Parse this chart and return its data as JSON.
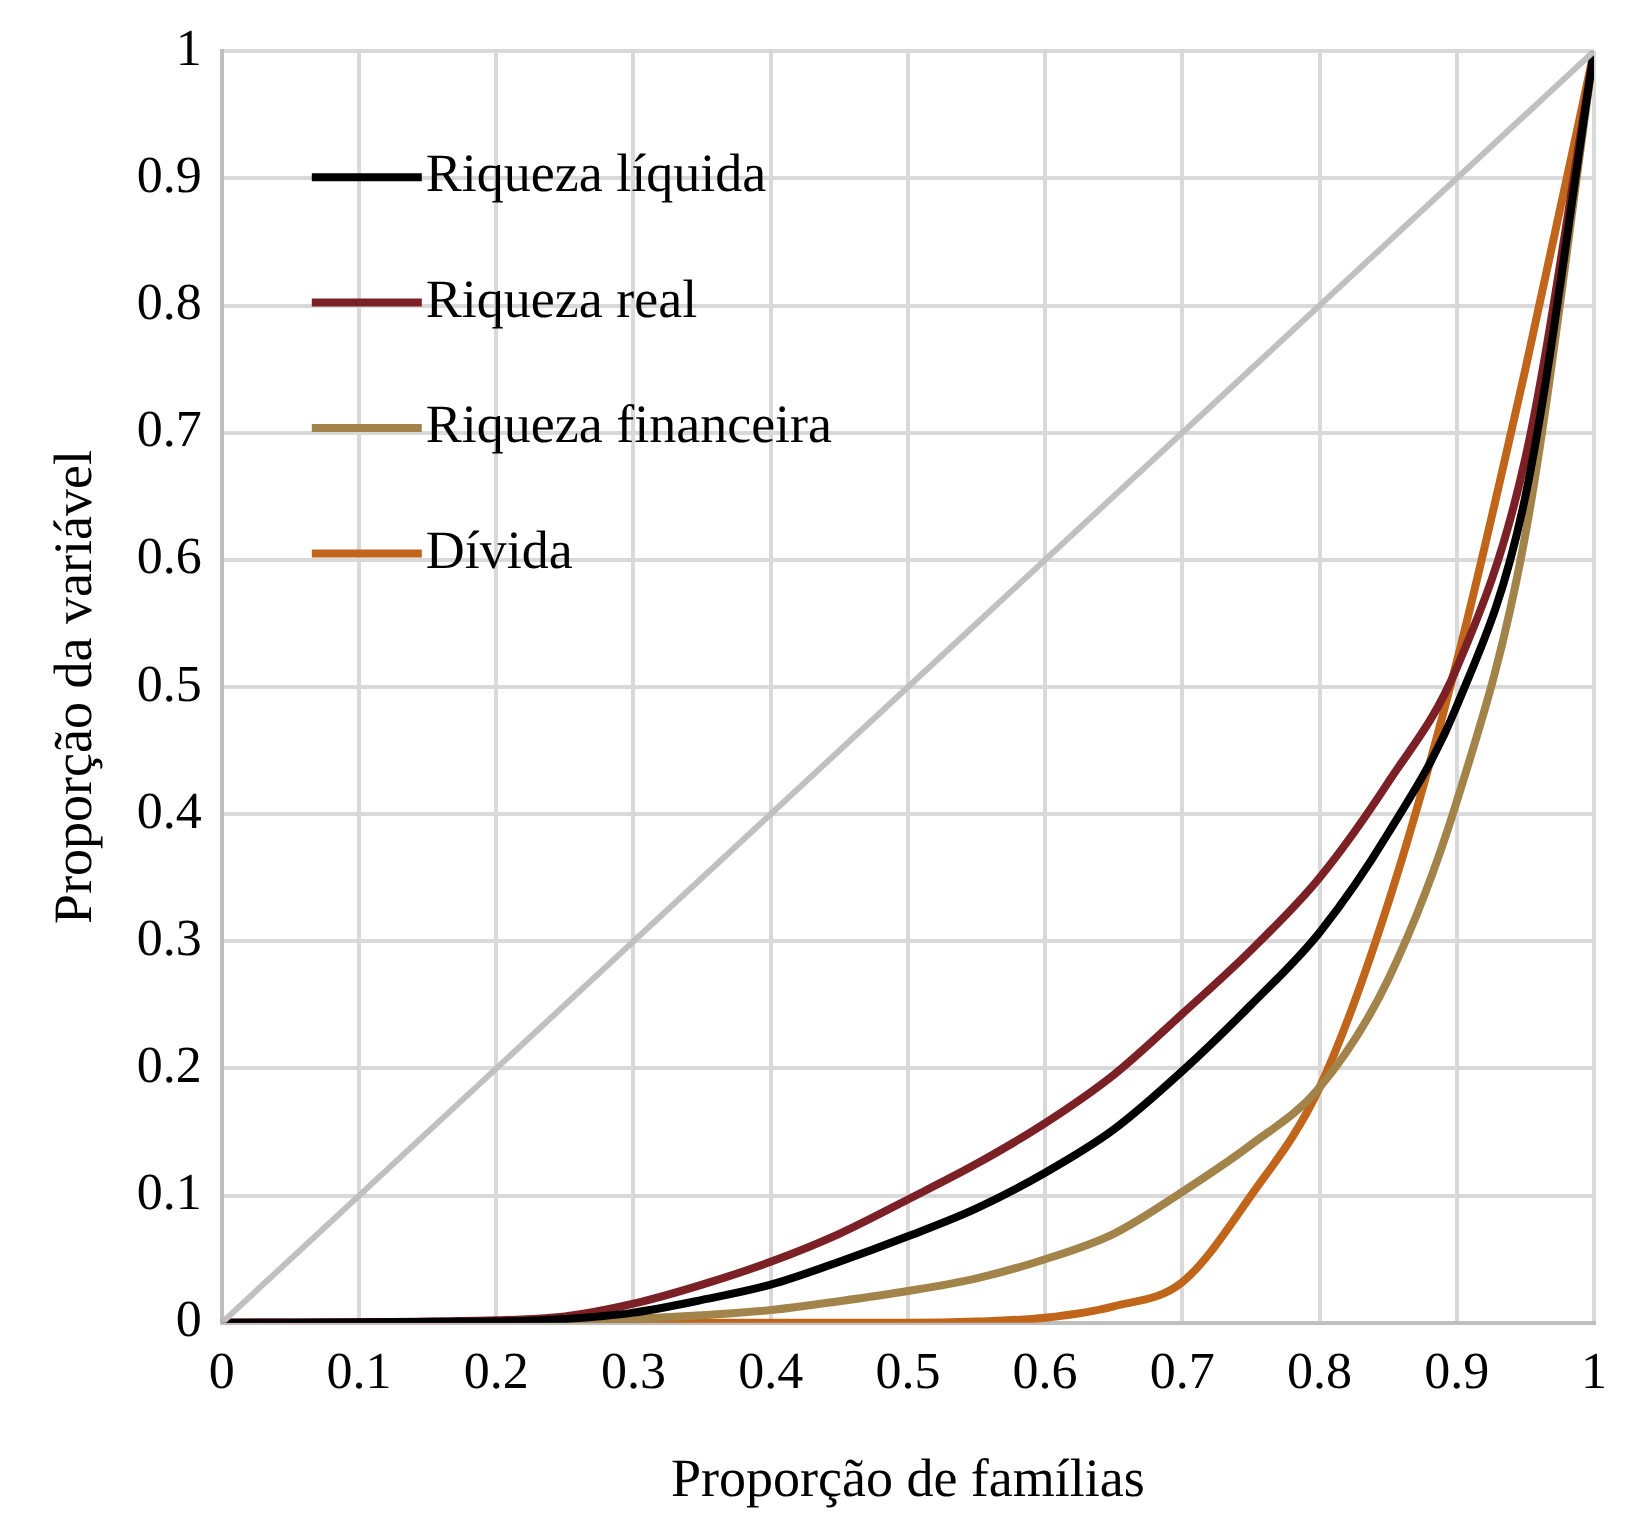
{
  "chart_data": {
    "type": "line",
    "xlabel": "Proporção de famílias",
    "ylabel": "Proporção da variável",
    "x": [
      0,
      0.2,
      0.25,
      0.3,
      0.35,
      0.4,
      0.45,
      0.5,
      0.55,
      0.6,
      0.65,
      0.7,
      0.75,
      0.8,
      0.85,
      0.9,
      0.95,
      1
    ],
    "xlim": [
      0,
      1
    ],
    "ylim": [
      0,
      1
    ],
    "xticks": [
      0,
      0.1,
      0.2,
      0.3,
      0.4,
      0.5,
      0.6,
      0.7,
      0.8,
      0.9,
      1
    ],
    "yticks": [
      0,
      0.1,
      0.2,
      0.3,
      0.4,
      0.5,
      0.6,
      0.7,
      0.8,
      0.9,
      1
    ],
    "grid": true,
    "legend": "top left",
    "marker": "none",
    "line_style": "solid",
    "series": [
      {
        "x": [
          0,
          1
        ],
        "color": "#c0c0c0",
        "values": [
          0,
          1
        ]
      },
      {
        "name": "Riqueza líquida",
        "color": "#000000",
        "values": [
          0,
          0.001,
          0.003,
          0.008,
          0.018,
          0.03,
          0.048,
          0.068,
          0.09,
          0.118,
          0.152,
          0.198,
          0.25,
          0.307,
          0.385,
          0.485,
          0.65,
          1
        ]
      },
      {
        "name": "Riqueza real",
        "color": "#7b2126",
        "values": [
          0,
          0.002,
          0.005,
          0.015,
          0.03,
          0.048,
          0.07,
          0.097,
          0.125,
          0.157,
          0.195,
          0.243,
          0.293,
          0.35,
          0.425,
          0.515,
          0.68,
          1
        ]
      },
      {
        "name": "Riqueza financeira",
        "color": "#a2844a",
        "values": [
          0,
          0,
          0.001,
          0.003,
          0.006,
          0.01,
          0.017,
          0.025,
          0.035,
          0.05,
          0.07,
          0.103,
          0.14,
          0.185,
          0.27,
          0.41,
          0.62,
          1
        ]
      },
      {
        "name": "Dívida",
        "color": "#c0651a",
        "values": [
          0,
          0,
          0,
          0,
          0,
          0,
          0,
          0,
          0.001,
          0.004,
          0.013,
          0.032,
          0.1,
          0.185,
          0.33,
          0.52,
          0.75,
          1
        ]
      }
    ]
  }
}
